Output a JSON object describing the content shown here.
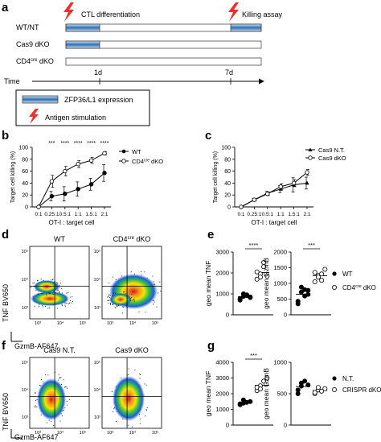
{
  "panel_labels": {
    "a": "a",
    "b": "b",
    "c": "c",
    "d": "d",
    "e": "e",
    "f": "f",
    "g": "g"
  },
  "panel_a": {
    "ctl_label": "CTL differentiation",
    "killing_label": "Killing assay",
    "rows": [
      {
        "label": "WT/NT",
        "expr": "early+late"
      },
      {
        "label": "Cas9 dKO",
        "expr": "early"
      },
      {
        "label": "CD4cre dKO",
        "expr": "none"
      }
    ],
    "cre_base": "CD4",
    "cre_sup": "cre",
    "cre_rest": " dKO",
    "time_label": "Time",
    "tick_1": "1d",
    "tick_7": "7d",
    "legend_expr": "ZFP36/L1 expression",
    "legend_antigen": "Antigen stimulation",
    "colors": {
      "expr_dark": "#2f6fb3",
      "expr_light": "#cfe2f5",
      "bolt": "#e8312b"
    }
  },
  "chart_data": [
    {
      "type": "line",
      "panel": "b",
      "ylabel": "Target cell killing (%)",
      "xlabel": "OT-I : target cell",
      "categories": [
        "0:1",
        "0.25:1",
        "0.5:1",
        "1:1",
        "1.5:1",
        "2:1"
      ],
      "ylim": [
        0,
        100
      ],
      "yticks": [
        "0",
        "20",
        "40",
        "60",
        "80",
        "100"
      ],
      "significance": [
        "***",
        "****",
        "****",
        "****",
        "****"
      ],
      "series": [
        {
          "name": "WT",
          "marker": "filled",
          "values": [
            0,
            18,
            22,
            30,
            38,
            57
          ]
        },
        {
          "name": "CD4cre dKO",
          "marker": "open",
          "values": [
            0,
            43,
            60,
            72,
            78,
            90
          ]
        }
      ]
    },
    {
      "type": "line",
      "panel": "c",
      "ylabel": "Target cell killing (%)",
      "xlabel": "OT-I : target cell",
      "categories": [
        "0:1",
        "0.25:1",
        "0.5:1",
        "1:1",
        "1.5:1",
        "2:1"
      ],
      "ylim": [
        0,
        100
      ],
      "yticks": [
        "0",
        "20",
        "40",
        "60",
        "80",
        "100"
      ],
      "series": [
        {
          "name": "Cas9 N.T.",
          "marker": "filled",
          "values": [
            0,
            12,
            23,
            30,
            37,
            40
          ]
        },
        {
          "name": "Cas9 dKO",
          "marker": "open",
          "values": [
            0,
            12,
            22,
            34,
            40,
            58
          ]
        }
      ]
    },
    {
      "type": "scatter",
      "panel": "e-tnf",
      "ylabel": "geo mean TNF",
      "ylim": [
        0,
        3000
      ],
      "yticks": [
        "0",
        "1000",
        "2000",
        "3000"
      ],
      "significance": "****",
      "groups": [
        {
          "name": "WT",
          "marker": "filled",
          "values": [
            780,
            880,
            920,
            850,
            700,
            1000,
            950,
            820
          ]
        },
        {
          "name": "CD4cre dKO",
          "marker": "open",
          "values": [
            1700,
            1950,
            2300,
            1850,
            2050,
            1800,
            2500
          ]
        }
      ]
    },
    {
      "type": "scatter",
      "panel": "e-gzmb",
      "ylabel": "geo mean GzmB",
      "ylim": [
        0,
        2000
      ],
      "yticks": [
        "0",
        "500",
        "1000",
        "1500",
        "2000"
      ],
      "significance": "***",
      "groups": [
        {
          "name": "WT",
          "marker": "filled",
          "values": [
            430,
            720,
            800,
            650,
            350,
            880,
            600,
            780
          ]
        },
        {
          "name": "CD4cre dKO",
          "marker": "open",
          "values": [
            1050,
            1250,
            1300,
            1450,
            1350,
            1200,
            1100
          ]
        }
      ]
    },
    {
      "type": "scatter",
      "panel": "g-tnf",
      "ylabel": "geo mean TNF",
      "ylim": [
        0,
        4000
      ],
      "yticks": [
        "0",
        "1000",
        "2000",
        "3000",
        "4000"
      ],
      "significance": "***",
      "groups": [
        {
          "name": "N.T.",
          "marker": "filled",
          "values": [
            1300,
            1400,
            1450,
            1500,
            1350,
            1600
          ]
        },
        {
          "name": "CRISPR dKO",
          "marker": "open",
          "values": [
            2200,
            2500,
            2800,
            3000,
            2400,
            2300
          ]
        }
      ]
    },
    {
      "type": "scatter",
      "panel": "g-gzmb",
      "ylabel": "geo mean GzmB",
      "ylim": [
        0,
        1000
      ],
      "yticks": [
        "0",
        "500",
        "1000"
      ],
      "groups": [
        {
          "name": "N.T.",
          "marker": "filled",
          "values": [
            560,
            620,
            700,
            640,
            500,
            670
          ]
        },
        {
          "name": "CRISPR dKO",
          "marker": "open",
          "values": [
            500,
            560,
            540,
            580,
            520,
            600
          ]
        }
      ]
    }
  ],
  "legend_e": {
    "wt": "WT",
    "ko_base": "CD4",
    "ko_sup": "cre",
    "ko_rest": " dKO"
  },
  "legend_g": {
    "nt": "N.T.",
    "ko": "CRISPR dKO"
  },
  "flow_d": {
    "titles": [
      "WT",
      "CD4cre dKO"
    ],
    "title_left": "WT",
    "title_right_base": "CD4",
    "title_right_sup": "cre",
    "title_right_rest": " dKO",
    "ylabel": "TNF BV650",
    "xlabel": "GzmB-AF647",
    "yticks": [
      "10⁵",
      "10⁴",
      "10³"
    ],
    "xticks": [
      "10³",
      "10⁴",
      "10⁵"
    ]
  },
  "flow_f": {
    "title_left": "Cas9 N.T.",
    "title_right": "Cas9 dKO",
    "ylabel": "TNF BV650",
    "xlabel": "GzmB-AF647",
    "yticks": [
      "10⁵",
      "10⁴",
      "10³"
    ],
    "xticks": [
      "10³",
      "10⁴",
      "10⁵"
    ]
  }
}
